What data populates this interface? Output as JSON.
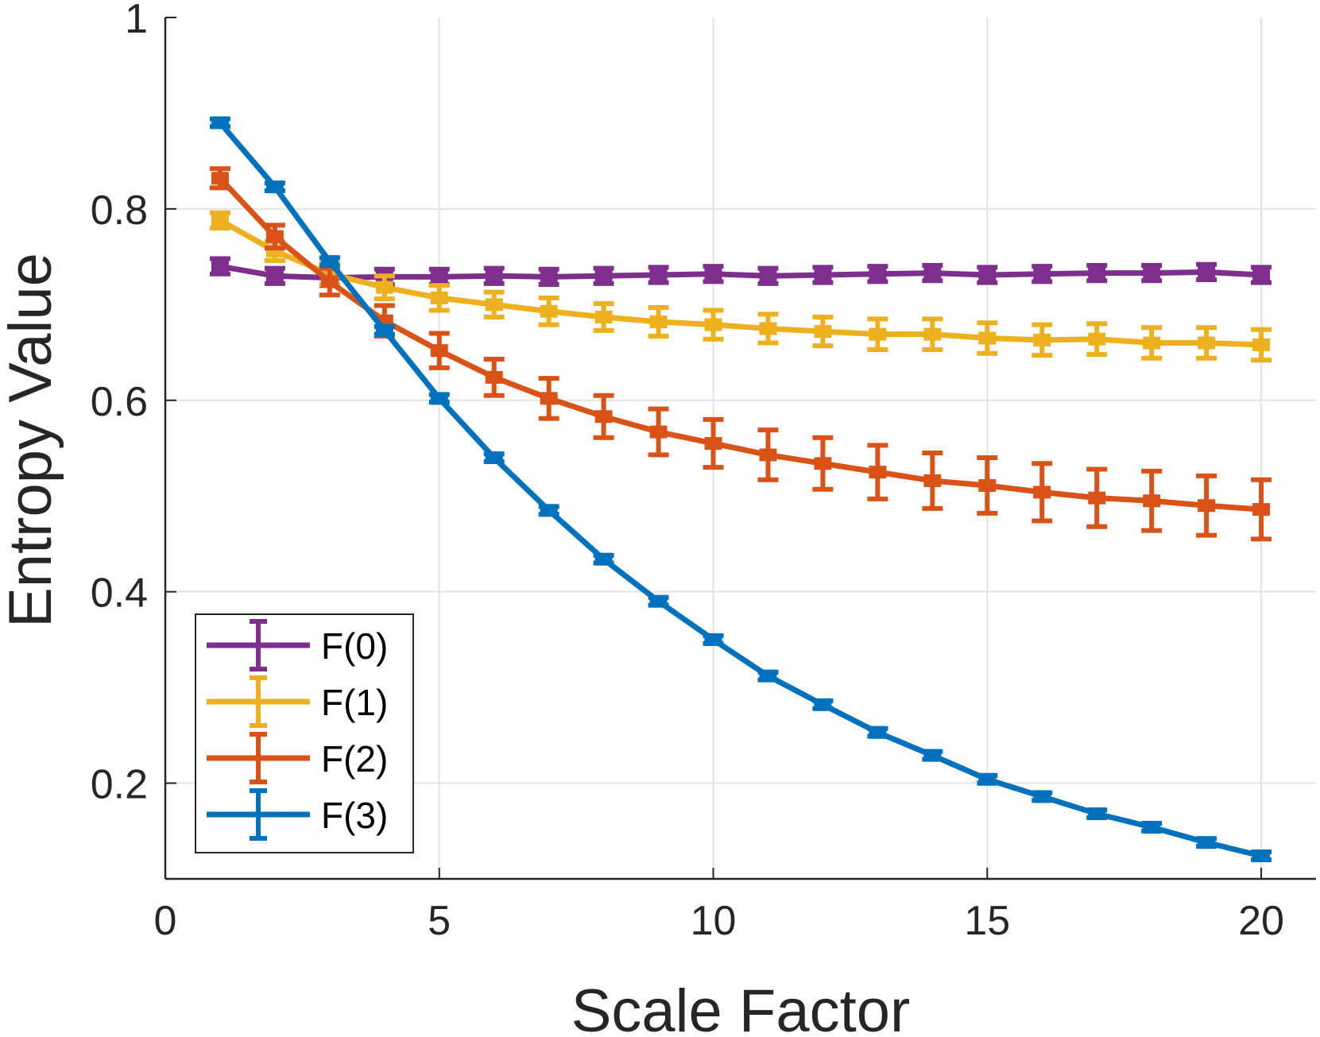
{
  "chart_data": {
    "type": "line",
    "title": "",
    "xlabel": "Scale Factor",
    "ylabel": "Entropy Value",
    "xlim": [
      0,
      21
    ],
    "ylim": [
      0.1,
      1.0
    ],
    "grid": true,
    "error_bars": true,
    "x_ticks": [
      "0",
      "5",
      "10",
      "15",
      "20"
    ],
    "y_ticks": [
      "0.2",
      "0.4",
      "0.6",
      "0.8",
      "1"
    ],
    "legend_position": "bottom-left",
    "x": [
      1,
      2,
      3,
      4,
      5,
      6,
      7,
      8,
      9,
      10,
      11,
      12,
      13,
      14,
      15,
      16,
      17,
      18,
      19,
      20
    ],
    "series": [
      {
        "name": "F(0)",
        "color": "#7E2F8E",
        "values": [
          0.74,
          0.73,
          0.728,
          0.729,
          0.729,
          0.73,
          0.729,
          0.73,
          0.731,
          0.732,
          0.73,
          0.731,
          0.732,
          0.733,
          0.731,
          0.732,
          0.733,
          0.733,
          0.734,
          0.731
        ],
        "errors": [
          0.008,
          0.008,
          0.008,
          0.008,
          0.008,
          0.008,
          0.008,
          0.008,
          0.008,
          0.008,
          0.008,
          0.008,
          0.008,
          0.008,
          0.008,
          0.008,
          0.008,
          0.008,
          0.008,
          0.008
        ]
      },
      {
        "name": "F(1)",
        "color": "#EDB120",
        "values": [
          0.788,
          0.756,
          0.732,
          0.718,
          0.707,
          0.7,
          0.693,
          0.687,
          0.682,
          0.679,
          0.675,
          0.672,
          0.669,
          0.669,
          0.665,
          0.663,
          0.664,
          0.66,
          0.66,
          0.658
        ],
        "errors": [
          0.008,
          0.01,
          0.011,
          0.012,
          0.013,
          0.013,
          0.014,
          0.014,
          0.015,
          0.015,
          0.015,
          0.015,
          0.016,
          0.016,
          0.016,
          0.016,
          0.016,
          0.016,
          0.016,
          0.016
        ]
      },
      {
        "name": "F(2)",
        "color": "#D95319",
        "values": [
          0.832,
          0.771,
          0.724,
          0.683,
          0.652,
          0.624,
          0.602,
          0.583,
          0.567,
          0.555,
          0.543,
          0.534,
          0.525,
          0.516,
          0.511,
          0.504,
          0.498,
          0.495,
          0.49,
          0.486
        ],
        "errors": [
          0.01,
          0.012,
          0.014,
          0.016,
          0.018,
          0.019,
          0.021,
          0.022,
          0.024,
          0.025,
          0.026,
          0.027,
          0.028,
          0.029,
          0.029,
          0.03,
          0.03,
          0.031,
          0.031,
          0.031
        ]
      },
      {
        "name": "F(3)",
        "color": "#0072BD",
        "values": [
          0.89,
          0.823,
          0.745,
          0.673,
          0.602,
          0.54,
          0.485,
          0.434,
          0.39,
          0.35,
          0.312,
          0.282,
          0.253,
          0.229,
          0.204,
          0.186,
          0.168,
          0.154,
          0.138,
          0.124
        ],
        "errors": [
          0.004,
          0.004,
          0.004,
          0.004,
          0.004,
          0.004,
          0.004,
          0.004,
          0.004,
          0.004,
          0.004,
          0.004,
          0.004,
          0.004,
          0.004,
          0.004,
          0.004,
          0.004,
          0.004,
          0.004
        ]
      }
    ]
  }
}
